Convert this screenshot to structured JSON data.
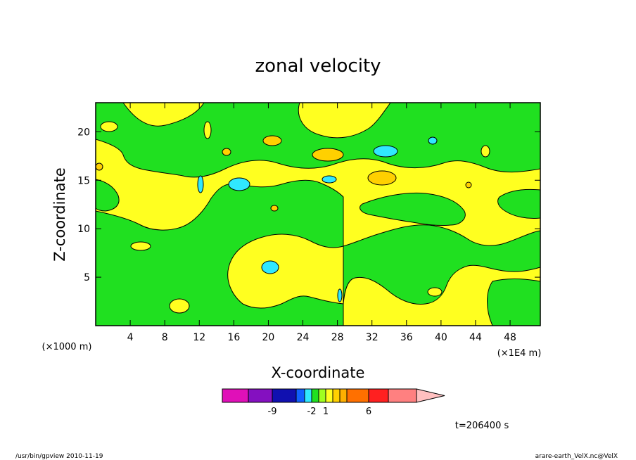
{
  "chart_data": {
    "type": "heatmap",
    "title": "zonal velocity",
    "xlabel": "X-coordinate",
    "ylabel": "Z-coordinate",
    "x_unit": "(×1E4 m)",
    "y_unit": "(×1000 m)",
    "xlim": [
      0,
      51.5
    ],
    "ylim": [
      0,
      23
    ],
    "x_ticks": [
      4,
      8,
      12,
      16,
      20,
      24,
      28,
      32,
      36,
      40,
      44,
      48
    ],
    "y_ticks": [
      5,
      10,
      15,
      20
    ],
    "colorbar": {
      "colors": [
        "#e010b8",
        "#8410c0",
        "#1010b0",
        "#1060ff",
        "#30e8ff",
        "#20e020",
        "#a0ff20",
        "#ffff20",
        "#ffd000",
        "#ffb000",
        "#ff7000",
        "#ff2020",
        "#ff8080",
        "#ffc0c0"
      ],
      "labels": [
        "-9",
        "-2",
        "1",
        "6"
      ]
    },
    "time_label": "t=206400 s"
  },
  "footer": {
    "left": "/usr/bin/gpview   2010-11-19",
    "right": "arare-earth_VelX.nc@VelX"
  }
}
